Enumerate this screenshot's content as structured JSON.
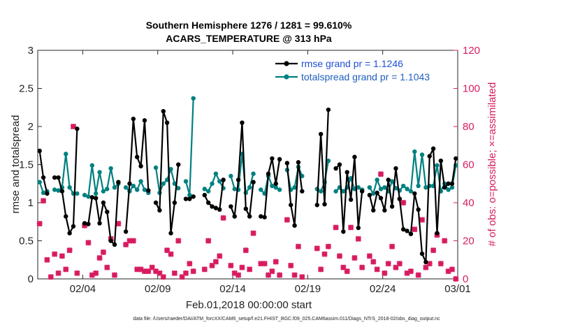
{
  "chart_data": {
    "type": "line",
    "title": "Southern Hemisphere 1276 / 1281 = 99.610%",
    "subtitle": "ACARS_TEMPERATURE @ 313 hPa",
    "xlabel": "Feb.01,2018 00:00:00 start",
    "ylabel": "rmse and totalspread",
    "y2label": "# of obs: o=possible; ×=assimilated",
    "footnote": "data file: /Users/raeder/DAI/ATM_forcXX/CAM6_setup/f.e21.FHIST_BGC.f09_025.CAM6assim.011/Diags_NTrS_2018-02/obs_diag_output.nc",
    "xlim": [
      1,
      29
    ],
    "xticks": [
      4,
      9,
      14,
      19,
      24,
      29
    ],
    "xtick_labels": [
      "02/04",
      "02/09",
      "02/14",
      "02/19",
      "02/24",
      "03/01"
    ],
    "ylim": [
      0,
      3
    ],
    "yticks": [
      0,
      0.5,
      1,
      1.5,
      2,
      2.5,
      3
    ],
    "ytick_labels": [
      "0",
      "0.5",
      "1",
      "1.5",
      "2",
      "2.5",
      "3"
    ],
    "y2lim": [
      0,
      120
    ],
    "y2ticks": [
      0,
      20,
      40,
      60,
      80,
      100,
      120
    ],
    "y2tick_labels": [
      "0",
      "20",
      "40",
      "60",
      "80",
      "100",
      "120"
    ],
    "colors": {
      "rmse": "#000000",
      "spread": "#008080",
      "obs": "#d81b60",
      "rmse_legend_text": "#1f4fd8",
      "spread_legend_text": "#1f5fbf"
    },
    "series": [
      {
        "name": "rmse grand pr = 1.1246",
        "x": [
          1.125,
          1.375,
          1.625,
          1.875,
          2.125,
          2.375,
          2.625,
          2.875,
          3.125,
          3.375,
          3.625,
          3.875,
          4.125,
          4.375,
          4.625,
          4.875,
          5.125,
          5.375,
          5.625,
          5.875,
          6.125,
          6.375,
          6.625,
          6.875,
          7.125,
          7.375,
          7.625,
          7.875,
          8.125,
          8.375,
          8.625,
          8.875,
          9.125,
          9.375,
          9.625,
          9.875,
          10.125,
          10.375,
          10.625,
          10.875,
          11.125,
          11.375,
          11.625,
          11.875,
          12.125,
          12.375,
          12.625,
          12.875,
          13.125,
          13.375,
          13.625,
          13.875,
          14.125,
          14.375,
          14.625,
          14.875,
          15.125,
          15.375,
          15.625,
          15.875,
          16.125,
          16.375,
          16.625,
          16.875,
          17.125,
          17.375,
          17.625,
          17.875,
          18.125,
          18.375,
          18.625,
          18.875,
          19.125,
          19.375,
          19.625,
          19.875,
          20.125,
          20.375,
          20.625,
          20.875,
          21.125,
          21.375,
          21.625,
          21.875,
          22.125,
          22.375,
          22.625,
          22.875,
          23.125,
          23.375,
          23.625,
          23.875,
          24.125,
          24.375,
          24.625,
          24.875,
          25.125,
          25.375,
          25.625,
          25.875,
          26.125,
          26.375,
          26.625,
          26.875,
          27.125,
          27.375,
          27.625,
          27.875,
          28.125,
          28.375,
          28.625,
          28.875
        ],
        "values": [
          1.68,
          1.33,
          1.12,
          null,
          1.33,
          1.33,
          1.15,
          0.82,
          0.6,
          0.69,
          1.97,
          null,
          0.73,
          0.72,
          1.07,
          1.06,
          0.73,
          1.0,
          0.88,
          0.5,
          0.45,
          1.27,
          null,
          0.62,
          1.25,
          2.1,
          1.6,
          1.48,
          2.08,
          1.16,
          null,
          1.0,
          0.9,
          2.2,
          2.05,
          0.6,
          1.0,
          1.5,
          null,
          1.05,
          1.05,
          1.08,
          null,
          null,
          1.1,
          1.0,
          0.95,
          0.93,
          0.91,
          1.3,
          null,
          0.95,
          0.82,
          1.3,
          2.05,
          0.92,
          0.82,
          1.27,
          null,
          0.82,
          0.81,
          1.38,
          1.58,
          1.25,
          1.57,
          null,
          1.52,
          0.97,
          0.7,
          1.53,
          1.15,
          null,
          null,
          null,
          0.97,
          1.9,
          0.98,
          2.22,
          null,
          1.45,
          1.5,
          0.62,
          1.4,
          1.04,
          1.6,
          0.67,
          1.15,
          null,
          1.1,
          0.9,
          1.13,
          1.06,
          0.9,
          1.3,
          0.95,
          1.45,
          1.05,
          0.65,
          0.63,
          0.59,
          1.12,
          0.91,
          0.33,
          0.22,
          1.61,
          1.71,
          0.6,
          1.55,
          1.2,
          1.25,
          1.25,
          1.58
        ]
      },
      {
        "name": "totalspread grand pr = 1.1043",
        "x": [
          1.125,
          1.375,
          1.625,
          1.875,
          2.125,
          2.375,
          2.625,
          2.875,
          3.125,
          3.375,
          3.625,
          3.875,
          4.125,
          4.375,
          4.625,
          4.875,
          5.125,
          5.375,
          5.625,
          5.875,
          6.125,
          6.375,
          6.625,
          6.875,
          7.125,
          7.375,
          7.625,
          7.875,
          8.125,
          8.375,
          8.625,
          8.875,
          9.125,
          9.375,
          9.625,
          9.875,
          10.125,
          10.375,
          10.625,
          10.875,
          11.125,
          11.375,
          11.625,
          11.875,
          12.125,
          12.375,
          12.625,
          12.875,
          13.125,
          13.375,
          13.625,
          13.875,
          14.125,
          14.375,
          14.625,
          14.875,
          15.125,
          15.375,
          15.625,
          15.875,
          16.125,
          16.375,
          16.625,
          16.875,
          17.125,
          17.375,
          17.625,
          17.875,
          18.125,
          18.375,
          18.625,
          18.875,
          19.125,
          19.375,
          19.625,
          19.875,
          20.125,
          20.375,
          20.625,
          20.875,
          21.125,
          21.375,
          21.625,
          21.875,
          22.125,
          22.375,
          22.625,
          22.875,
          23.125,
          23.375,
          23.625,
          23.875,
          24.125,
          24.375,
          24.625,
          24.875,
          25.125,
          25.375,
          25.625,
          25.875,
          26.125,
          26.375,
          26.625,
          26.875,
          27.125,
          27.375,
          27.625,
          27.875,
          28.125,
          28.375,
          28.625,
          28.875
        ],
        "values": [
          1.27,
          1.13,
          1.15,
          null,
          1.17,
          1.16,
          1.2,
          1.64,
          1.2,
          1.12,
          1.12,
          null,
          1.1,
          1.08,
          1.49,
          1.12,
          1.4,
          1.15,
          1.18,
          1.45,
          1.2,
          1.25,
          null,
          1.2,
          1.15,
          1.22,
          1.17,
          1.28,
          1.17,
          1.13,
          null,
          1.46,
          1.13,
          1.25,
          1.3,
          1.44,
          1.25,
          1.19,
          null,
          1.28,
          1.1,
          2.37,
          null,
          null,
          1.18,
          1.15,
          1.25,
          1.38,
          1.28,
          1.19,
          null,
          1.35,
          1.18,
          1.17,
          1.64,
          1.13,
          1.2,
          1.38,
          null,
          1.17,
          1.12,
          1.35,
          1.22,
          1.2,
          1.17,
          null,
          1.43,
          1.17,
          1.2,
          1.47,
          1.35,
          null,
          null,
          null,
          1.18,
          1.15,
          1.27,
          1.55,
          null,
          1.15,
          1.2,
          1.15,
          1.2,
          1.32,
          1.18,
          1.2,
          1.17,
          null,
          1.2,
          1.12,
          1.3,
          1.18,
          1.2,
          1.15,
          1.28,
          1.19,
          1.16,
          1.22,
          1.18,
          1.15,
          1.67,
          1.22,
          1.63,
          1.2,
          1.22,
          1.22,
          1.49,
          1.15,
          1.25,
          1.17,
          1.2,
          1.49
        ]
      }
    ],
    "observations": {
      "x": [
        1.125,
        1.375,
        1.625,
        1.875,
        2.125,
        2.375,
        2.625,
        2.875,
        3.125,
        3.375,
        3.625,
        3.875,
        4.125,
        4.375,
        4.625,
        4.875,
        5.125,
        5.375,
        5.625,
        5.875,
        6.125,
        6.375,
        6.625,
        6.875,
        7.125,
        7.375,
        7.625,
        7.875,
        8.125,
        8.375,
        8.625,
        8.875,
        9.125,
        9.375,
        9.625,
        9.875,
        10.125,
        10.375,
        10.625,
        10.875,
        11.125,
        11.375,
        11.625,
        11.875,
        12.125,
        12.375,
        12.625,
        12.875,
        13.125,
        13.375,
        13.625,
        13.875,
        14.125,
        14.375,
        14.625,
        14.875,
        15.125,
        15.375,
        15.625,
        15.875,
        16.125,
        16.375,
        16.625,
        16.875,
        17.125,
        17.375,
        17.625,
        17.875,
        18.125,
        18.375,
        18.625,
        18.875,
        19.125,
        19.375,
        19.625,
        19.875,
        20.125,
        20.375,
        20.625,
        20.875,
        21.125,
        21.375,
        21.625,
        21.875,
        22.125,
        22.375,
        22.625,
        22.875,
        23.125,
        23.375,
        23.625,
        23.875,
        24.125,
        24.375,
        24.625,
        24.875,
        25.125,
        25.375,
        25.625,
        25.875,
        26.125,
        26.375,
        26.625,
        26.875,
        27.125,
        27.375,
        27.625,
        27.875,
        28.125,
        28.375,
        28.625,
        28.875
      ],
      "counts": [
        29,
        41,
        10,
        1,
        13,
        3,
        12,
        5,
        15,
        80,
        3,
        null,
        28,
        19,
        2,
        3,
        11,
        14,
        6,
        21,
        2,
        29,
        null,
        18,
        20,
        20,
        5,
        5,
        4,
        4,
        6,
        4,
        3,
        1,
        15,
        13,
        3,
        20,
        1,
        3,
        8,
        4,
        null,
        null,
        5,
        20,
        7,
        9,
        12,
        32,
        null,
        7,
        3,
        2,
        6,
        15,
        5,
        24,
        null,
        8,
        8,
        2,
        4,
        9,
        2,
        null,
        31,
        7,
        2,
        17,
        1,
        null,
        null,
        null,
        16,
        5,
        13,
        17,
        null,
        27,
        12,
        6,
        4,
        27,
        11,
        21,
        6,
        null,
        12,
        9,
        5,
        55,
        3,
        8,
        17,
        6,
        8,
        40,
        3,
        4,
        26,
        2,
        31,
        6,
        8,
        15,
        23,
        8,
        20,
        4,
        5,
        0
      ]
    }
  }
}
